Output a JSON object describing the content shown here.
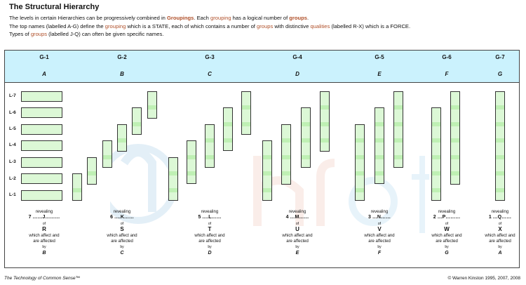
{
  "title": "The Structural Hierarchy",
  "intro": {
    "line1": {
      "a": "The levels in certain Hierarchies can be progressively combined in ",
      "b": "Groupings",
      "c": ". Each ",
      "d": "grouping",
      "e": " has a logical number of ",
      "f": "groups",
      "g": "."
    },
    "line2": {
      "a": "The top names (labelled A-G) define the ",
      "b": "grouping",
      "c": " which is a STATE, each of which contains a number of ",
      "d": "groups",
      "e": " with distinctive ",
      "f": "qualities",
      "g": " (labelled R-X) which is a FORCE."
    },
    "line3": {
      "a": "Types of ",
      "b": "groups",
      "c": " (labelled J-Q) can often be given specific names."
    }
  },
  "levels": [
    "L-7",
    "L-6",
    "L-5",
    "L-4",
    "L-3",
    "L-2",
    "L-1"
  ],
  "columns": [
    {
      "code": "G-1",
      "letter": "A",
      "rank": "7 ……J………",
      "cap": "R",
      "target": "B"
    },
    {
      "code": "G-2",
      "letter": "B",
      "rank": "6 ….K……",
      "cap": "S",
      "target": "C"
    },
    {
      "code": "G-3",
      "letter": "C",
      "rank": "5 ….L……",
      "cap": "T",
      "target": "D"
    },
    {
      "code": "G-4",
      "letter": "D",
      "rank": "4 …M……",
      "cap": "U",
      "target": "E"
    },
    {
      "code": "G-5",
      "letter": "E",
      "rank": "3 …N……",
      "cap": "V",
      "target": "F"
    },
    {
      "code": "G-6",
      "letter": "F",
      "rank": "2 …P………",
      "cap": "W",
      "target": "G"
    },
    {
      "code": "G-7",
      "letter": "G",
      "rank": "1 …Q……",
      "cap": "X",
      "target": "A"
    }
  ],
  "desc_text": {
    "revealing": "revealing",
    "of": "of",
    "line1": "which affect and",
    "line2": "are affected",
    "by": "by"
  },
  "footer": {
    "left": "The Technology of Common Sense™",
    "right": "© Warren Kinston 1995, 2007, 2008"
  },
  "colors": {
    "header_band": "#cbf2fd",
    "bar_fill": "#dcf8d6",
    "bar_join": "#bff0b4",
    "highlight_text": "#b0502a"
  }
}
